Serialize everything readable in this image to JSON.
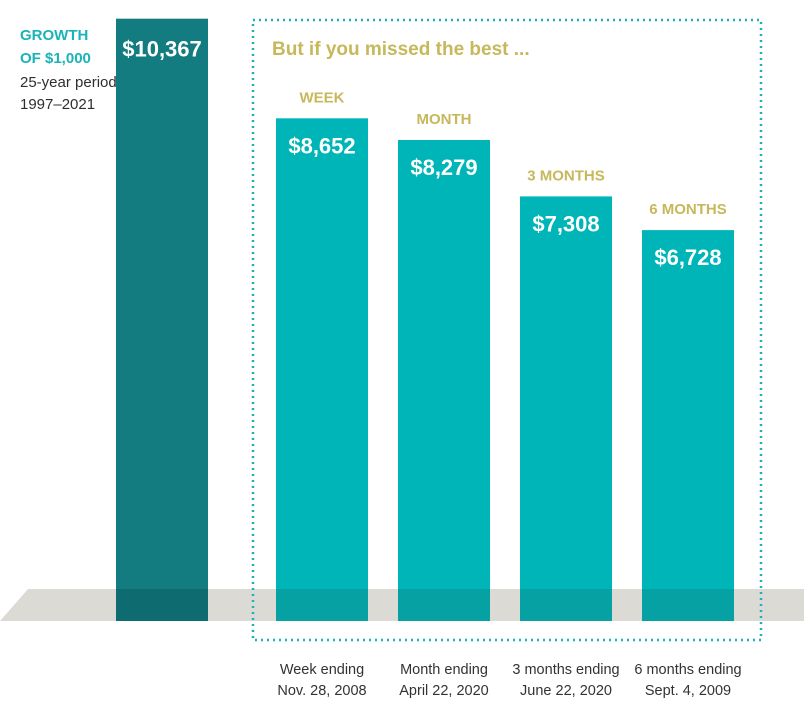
{
  "chart_data": {
    "type": "bar",
    "baseline": {
      "label_lines": [
        "GROWTH",
        "OF $1,000"
      ],
      "period_lines": [
        "25-year period",
        "1997–2021"
      ],
      "value": 10367,
      "value_label": "$10,367",
      "color": "#127c80"
    },
    "headline": "But if you missed the best ...",
    "bars": [
      {
        "category": "WEEK",
        "value": 8652,
        "value_label": "$8,652",
        "date_lines": [
          "Week ending",
          "Nov. 28, 2008"
        ]
      },
      {
        "category": "MONTH",
        "value": 8279,
        "value_label": "$8,279",
        "date_lines": [
          "Month ending",
          "April 22, 2020"
        ]
      },
      {
        "category": "3 MONTHS",
        "value": 7308,
        "value_label": "$7,308",
        "date_lines": [
          "3 months ending",
          "June 22, 2020"
        ]
      },
      {
        "category": "6 MONTHS",
        "value": 6728,
        "value_label": "$6,728",
        "date_lines": [
          "6 months ending",
          "Sept. 4, 2009"
        ]
      }
    ],
    "colors": {
      "bar": "#00b5b8",
      "baseline_bar": "#127c80",
      "highlight_text": "#c6b85b",
      "accent_text": "#19b3b8",
      "frame": "#19b3b8",
      "floor": "#dcdad4"
    }
  }
}
